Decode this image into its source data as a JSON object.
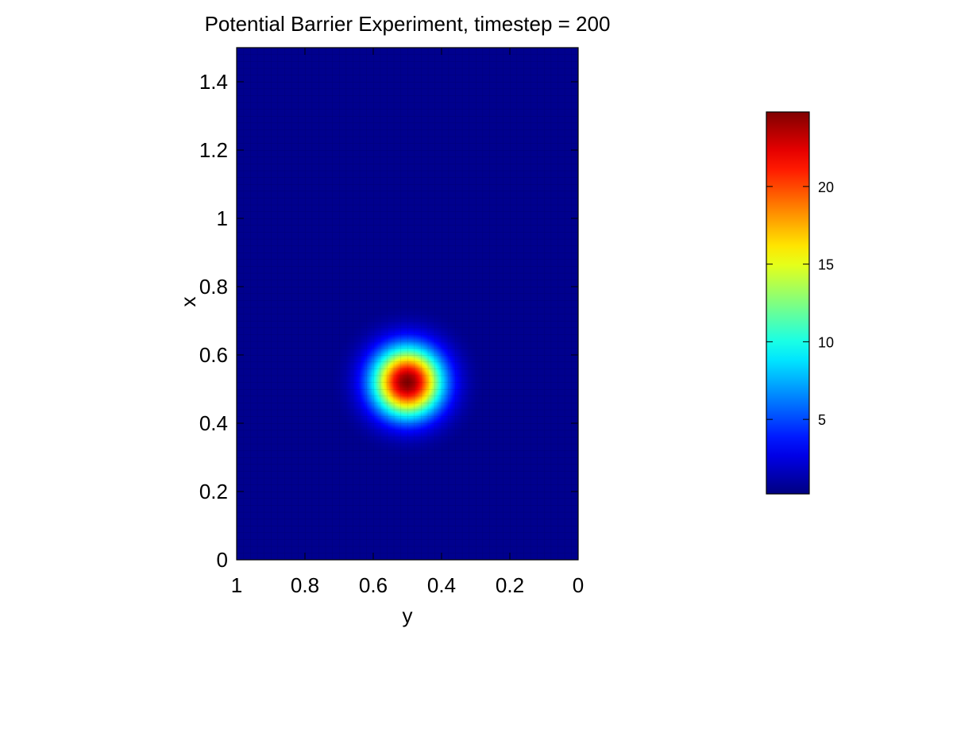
{
  "chart_data": {
    "type": "heatmap",
    "title": "Potential Barrier Experiment, timestep = 200",
    "xlabel": "y",
    "ylabel": "x",
    "x_axis": {
      "range": [
        1,
        0
      ],
      "reversed": true,
      "ticks": [
        1,
        0.8,
        0.6,
        0.4,
        0.2,
        0
      ],
      "tick_labels": [
        "1",
        "0.8",
        "0.6",
        "0.4",
        "0.2",
        "0"
      ]
    },
    "y_axis": {
      "range": [
        0,
        1.5
      ],
      "ticks": [
        0,
        0.2,
        0.4,
        0.6,
        0.8,
        1,
        1.2,
        1.4
      ],
      "tick_labels": [
        "0",
        "0.2",
        "0.4",
        "0.6",
        "0.8",
        "1",
        "1.2",
        "1.4"
      ]
    },
    "colormap": "jet",
    "colorbar": {
      "placement": "right",
      "range": [
        0.2,
        24.8
      ],
      "ticks": [
        5,
        10,
        15,
        20
      ],
      "tick_labels": [
        "5",
        "10",
        "15",
        "20"
      ]
    },
    "peak": {
      "y": 0.5,
      "x": 0.52,
      "value": 24.8,
      "sigma": 0.07
    },
    "background_value": 0.4,
    "colors": {
      "jet_low": "#00008f",
      "jet_blue": "#0000ff",
      "jet_cyan": "#00ffff",
      "jet_yellow": "#ffff00",
      "jet_red": "#ff0000",
      "jet_high": "#800000"
    },
    "grid": false
  }
}
